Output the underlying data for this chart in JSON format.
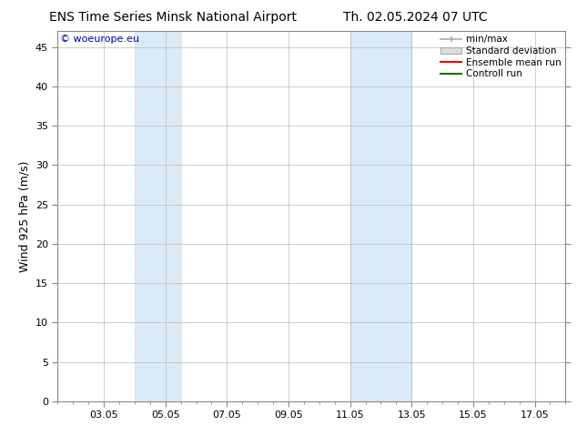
{
  "title_left": "ENS Time Series Minsk National Airport",
  "title_right": "Th. 02.05.2024 07 UTC",
  "ylabel": "Wind 925 hPa (m/s)",
  "watermark": "© woeurope.eu",
  "ylim": [
    0,
    47
  ],
  "yticks": [
    0,
    5,
    10,
    15,
    20,
    25,
    30,
    35,
    40,
    45
  ],
  "xlim": [
    -0.5,
    16.0
  ],
  "xtick_positions": [
    1,
    3,
    5,
    7,
    9,
    11,
    13,
    15
  ],
  "xtick_labels": [
    "03.05",
    "05.05",
    "07.05",
    "09.05",
    "11.05",
    "13.05",
    "15.05",
    "17.05"
  ],
  "shaded_bands": [
    {
      "x_start": 2.0,
      "x_end": 3.5
    },
    {
      "x_start": 9.0,
      "x_end": 11.0
    }
  ],
  "band_color": "#daeaf6",
  "grid_color": "#bbbbbb",
  "background_color": "#ffffff",
  "plot_bg_color": "#ffffff",
  "legend_items": [
    {
      "label": "min/max",
      "color": "#aaaaaa",
      "style": "minmax"
    },
    {
      "label": "Standard deviation",
      "color": "#cccccc",
      "style": "stddev"
    },
    {
      "label": "Ensemble mean run",
      "color": "#ff0000",
      "style": "line"
    },
    {
      "label": "Controll run",
      "color": "#007700",
      "style": "line"
    }
  ],
  "title_fontsize": 10,
  "axis_fontsize": 9,
  "tick_fontsize": 8,
  "watermark_fontsize": 8,
  "watermark_color": "#0000bb"
}
